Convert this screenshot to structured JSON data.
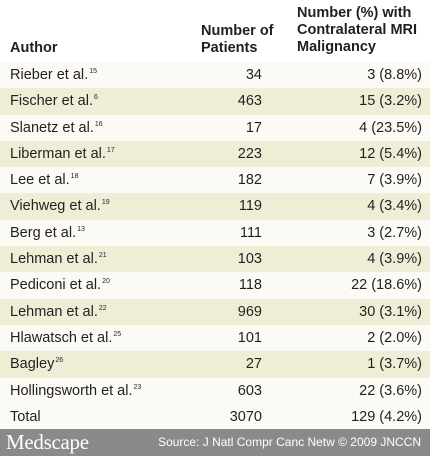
{
  "table": {
    "headers": {
      "author": "Author",
      "patients_line1": "Number of",
      "patients_line2": "Patients",
      "contra_line1": "Number (%) with",
      "contra_line2": "Contralateral MRI",
      "contra_line3": "Malignancy"
    },
    "rows": [
      {
        "author": "Rieber et al.",
        "ref": "15",
        "patients": "34",
        "malignancy": "3 (8.8%)"
      },
      {
        "author": "Fischer et al.",
        "ref": "6",
        "patients": "463",
        "malignancy": "15 (3.2%)"
      },
      {
        "author": "Slanetz et al.",
        "ref": "16",
        "patients": "17",
        "malignancy": "4 (23.5%)"
      },
      {
        "author": "Liberman et al.",
        "ref": "17",
        "patients": "223",
        "malignancy": "12 (5.4%)"
      },
      {
        "author": "Lee et al.",
        "ref": "18",
        "patients": "182",
        "malignancy": "7 (3.9%)"
      },
      {
        "author": "Viehweg et al.",
        "ref": "19",
        "patients": "119",
        "malignancy": "4 (3.4%)"
      },
      {
        "author": "Berg et al.",
        "ref": "13",
        "patients": "111",
        "malignancy": "3 (2.7%)"
      },
      {
        "author": "Lehman et al.",
        "ref": "21",
        "patients": "103",
        "malignancy": "4 (3.9%)"
      },
      {
        "author": "Pediconi et al.",
        "ref": "20",
        "patients": "118",
        "malignancy": "22 (18.6%)"
      },
      {
        "author": "Lehman et al.",
        "ref": "22",
        "patients": "969",
        "malignancy": "30 (3.1%)"
      },
      {
        "author": "Hlawatsch et al.",
        "ref": "25",
        "patients": "101",
        "malignancy": "2 (2.0%)"
      },
      {
        "author": "Bagley",
        "ref": "26",
        "patients": "27",
        "malignancy": "1 (3.7%)"
      },
      {
        "author": "Hollingsworth et al.",
        "ref": "23",
        "patients": "603",
        "malignancy": "22 (3.6%)"
      },
      {
        "author": "Total",
        "ref": "",
        "patients": "3070",
        "malignancy": "129 (4.2%)"
      }
    ]
  },
  "footer": {
    "brand": "Medscape",
    "source": "Source: J Natl Compr Canc Netw © 2009 JNCCN"
  },
  "colors": {
    "row_light": "#fbfaf5",
    "row_dark": "#efedd6",
    "footer_bg": "#8a8a8a",
    "text": "#231f20"
  }
}
